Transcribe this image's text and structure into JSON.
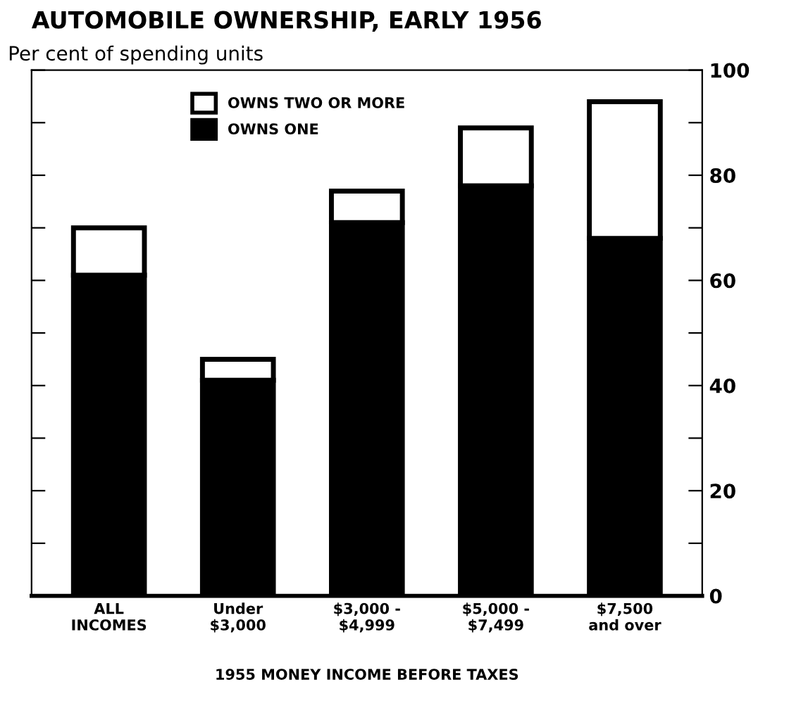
{
  "chart_data": {
    "type": "bar",
    "stacked": true,
    "title": "AUTOMOBILE OWNERSHIP, EARLY 1956",
    "subtitle": "Per cent of spending units",
    "xlabel": "1955 MONEY INCOME BEFORE TAXES",
    "categories": [
      "ALL\nINCOMES",
      "Under\n$3,000",
      "$3,000 -\n$4,999",
      "$5,000 -\n$7,499",
      "$7,500\nand over"
    ],
    "series": [
      {
        "name": "OWNS ONE",
        "color": "#000000",
        "values": [
          61,
          41,
          71,
          78,
          68
        ]
      },
      {
        "name": "OWNS TWO OR MORE",
        "color": "#ffffff",
        "values": [
          9,
          4,
          6,
          11,
          26
        ]
      }
    ],
    "ylim": [
      0,
      100
    ],
    "yticks": [
      0,
      {
        "value": 10,
        "label": null
      },
      20,
      {
        "value": 30,
        "label": null
      },
      40,
      {
        "value": 50,
        "label": null
      },
      60,
      {
        "value": 70,
        "label": null
      },
      80,
      {
        "value": 90,
        "label": null
      },
      100
    ],
    "grid": false,
    "legend": "top left"
  }
}
